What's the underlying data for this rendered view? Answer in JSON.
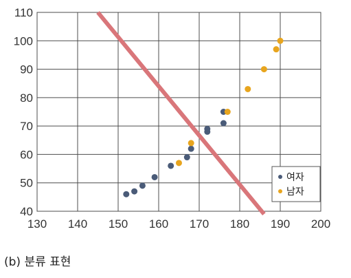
{
  "chart_data": {
    "type": "scatter",
    "x_range": [
      130,
      200
    ],
    "y_range": [
      40,
      110
    ],
    "x_ticks": [
      130,
      140,
      150,
      160,
      170,
      180,
      190,
      200
    ],
    "y_ticks": [
      40,
      50,
      60,
      70,
      80,
      90,
      100,
      110
    ],
    "grid": true,
    "legend_position": "bottom-right",
    "series": [
      {
        "name": "여자",
        "color": "#4a5b78",
        "points": [
          [
            152,
            46
          ],
          [
            154,
            47
          ],
          [
            156,
            49
          ],
          [
            159,
            52
          ],
          [
            163,
            56
          ],
          [
            167,
            59
          ],
          [
            168,
            62
          ],
          [
            172,
            68
          ],
          [
            172,
            69
          ],
          [
            176,
            71
          ],
          [
            176,
            75
          ]
        ]
      },
      {
        "name": "남자",
        "color": "#e8a51e",
        "points": [
          [
            165,
            57
          ],
          [
            168,
            64
          ],
          [
            177,
            75
          ],
          [
            182,
            83
          ],
          [
            186,
            90
          ],
          [
            189,
            97
          ],
          [
            190,
            100
          ]
        ]
      }
    ],
    "decision_line": {
      "color": "#d9767a",
      "from": [
        145,
        110
      ],
      "to": [
        186,
        39
      ]
    }
  },
  "caption": "(b) 분류 표현"
}
